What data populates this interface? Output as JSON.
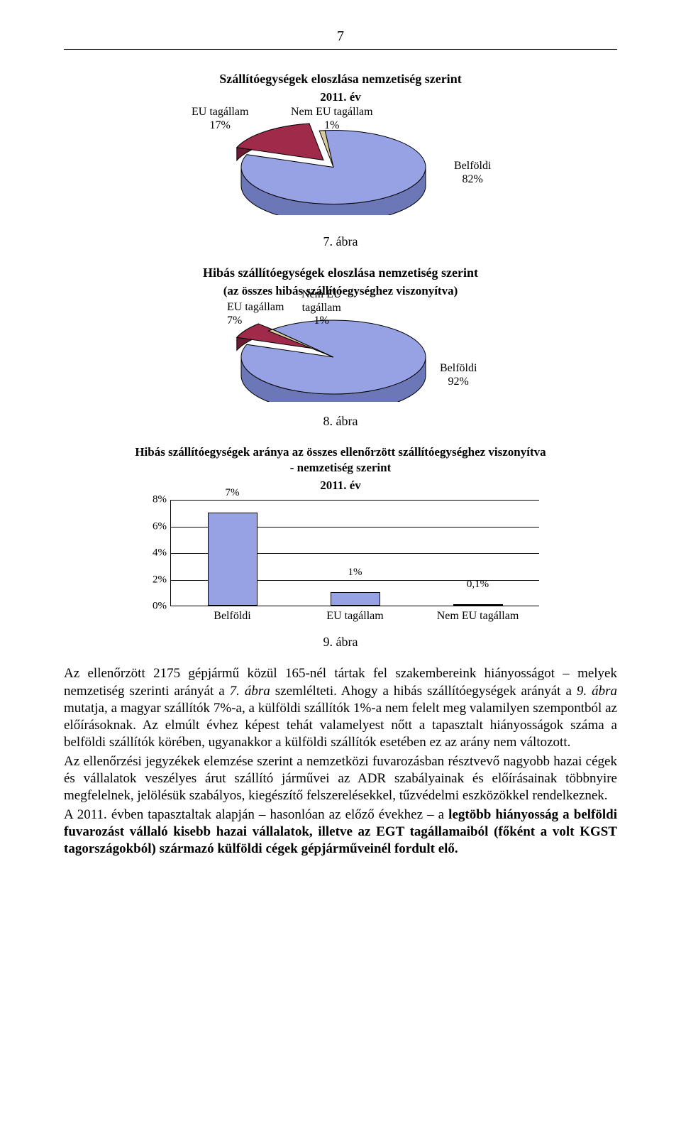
{
  "page_number": "7",
  "chart1": {
    "title": "Szállítóegységek eloszlása nemzetiség szerint",
    "subtitle": "2011. év",
    "slices": [
      {
        "name": "EU tagállam",
        "pct_label": "17%",
        "value": 17,
        "color": "#a02a4a"
      },
      {
        "name": "Nem EU tagállam",
        "pct_label": "1%",
        "value": 1,
        "color": "#d9caa0"
      },
      {
        "name": "Belföldi",
        "pct_label": "82%",
        "value": 82,
        "color": "#97a2e4"
      }
    ],
    "side_color": "#6c77b8",
    "outline": "#000000"
  },
  "caption1": "7. ábra",
  "chart2": {
    "title": "Hibás szállítóegységek eloszlása nemzetiség szerint",
    "subtitle": "(az összes hibás szállítóegységhez viszonyítva)",
    "slices": [
      {
        "name": "EU tagállam",
        "pct_label": "7%",
        "value": 7,
        "color": "#a02a4a"
      },
      {
        "name": "Nem EU\ntagállam",
        "pct_label": "1%",
        "value": 1,
        "color": "#d9caa0"
      },
      {
        "name": "Belföldi",
        "pct_label": "92%",
        "value": 92,
        "color": "#97a2e4"
      }
    ],
    "side_color": "#6c77b8",
    "outline": "#000000"
  },
  "caption2": "8. ábra",
  "chart3": {
    "title": "Hibás szállítóegységek aránya az összes ellenőrzött szállítóegységhez viszonyítva - nemzetiség szerint",
    "subtitle": "2011. év",
    "yticks": [
      "0%",
      "2%",
      "4%",
      "6%",
      "8%"
    ],
    "ymax_pct": 8,
    "bars": [
      {
        "category": "Belföldi",
        "label": "7%",
        "value": 7,
        "color": "#97a2e4"
      },
      {
        "category": "EU tagállam",
        "label": "1%",
        "value": 1,
        "color": "#97a2e4"
      },
      {
        "category": "Nem EU tagállam",
        "label": "0,1%",
        "value": 0.1,
        "color": "#97a2e4"
      }
    ],
    "grid_color": "#000000",
    "background": "#ffffff",
    "outline": "#000000"
  },
  "caption3": "9. ábra",
  "paragraphs": [
    {
      "segments": [
        {
          "t": "Az ellenőrzött 2175 gépjármű közül 165-nél tártak fel szakembereink hiányosságot – melyek nemzetiség szerinti arányát a "
        },
        {
          "t": "7. ábra",
          "italic": true
        },
        {
          "t": " szemlélteti. Ahogy a hibás szállítóegységek arányát a "
        },
        {
          "t": "9. ábra",
          "italic": true
        },
        {
          "t": " mutatja, a magyar szállítók 7%-a, a külföldi szállítók 1%-a nem felelt meg valamilyen szempontból az előírásoknak. Az elmúlt évhez képest tehát valamelyest nőtt a tapasztalt hiányosságok száma a belföldi szállítók körében, ugyanakkor a külföldi szállítók esetében ez az arány nem változott."
        }
      ]
    },
    {
      "segments": [
        {
          "t": "Az ellenőrzési jegyzékek elemzése szerint a nemzetközi fuvarozásban résztvevő nagyobb hazai cégek és vállalatok veszélyes árut szállító járművei az ADR szabályainak és előírásainak többnyire megfelelnek, jelölésük szabályos, kiegészítő felszerelésekkel, tűzvédelmi eszközökkel rendelkeznek."
        }
      ]
    },
    {
      "segments": [
        {
          "t": "A 2011. évben tapasztaltak alapján – hasonlóan az előző évekhez – a "
        },
        {
          "t": "legtöbb hiányosság a belföldi fuvarozást vállaló kisebb hazai vállalatok, illetve az EGT tagállamaiból (főként a volt KGST tagországokból) származó külföldi cégek gépjárműveinél fordult elő.",
          "bold": true
        }
      ]
    }
  ]
}
